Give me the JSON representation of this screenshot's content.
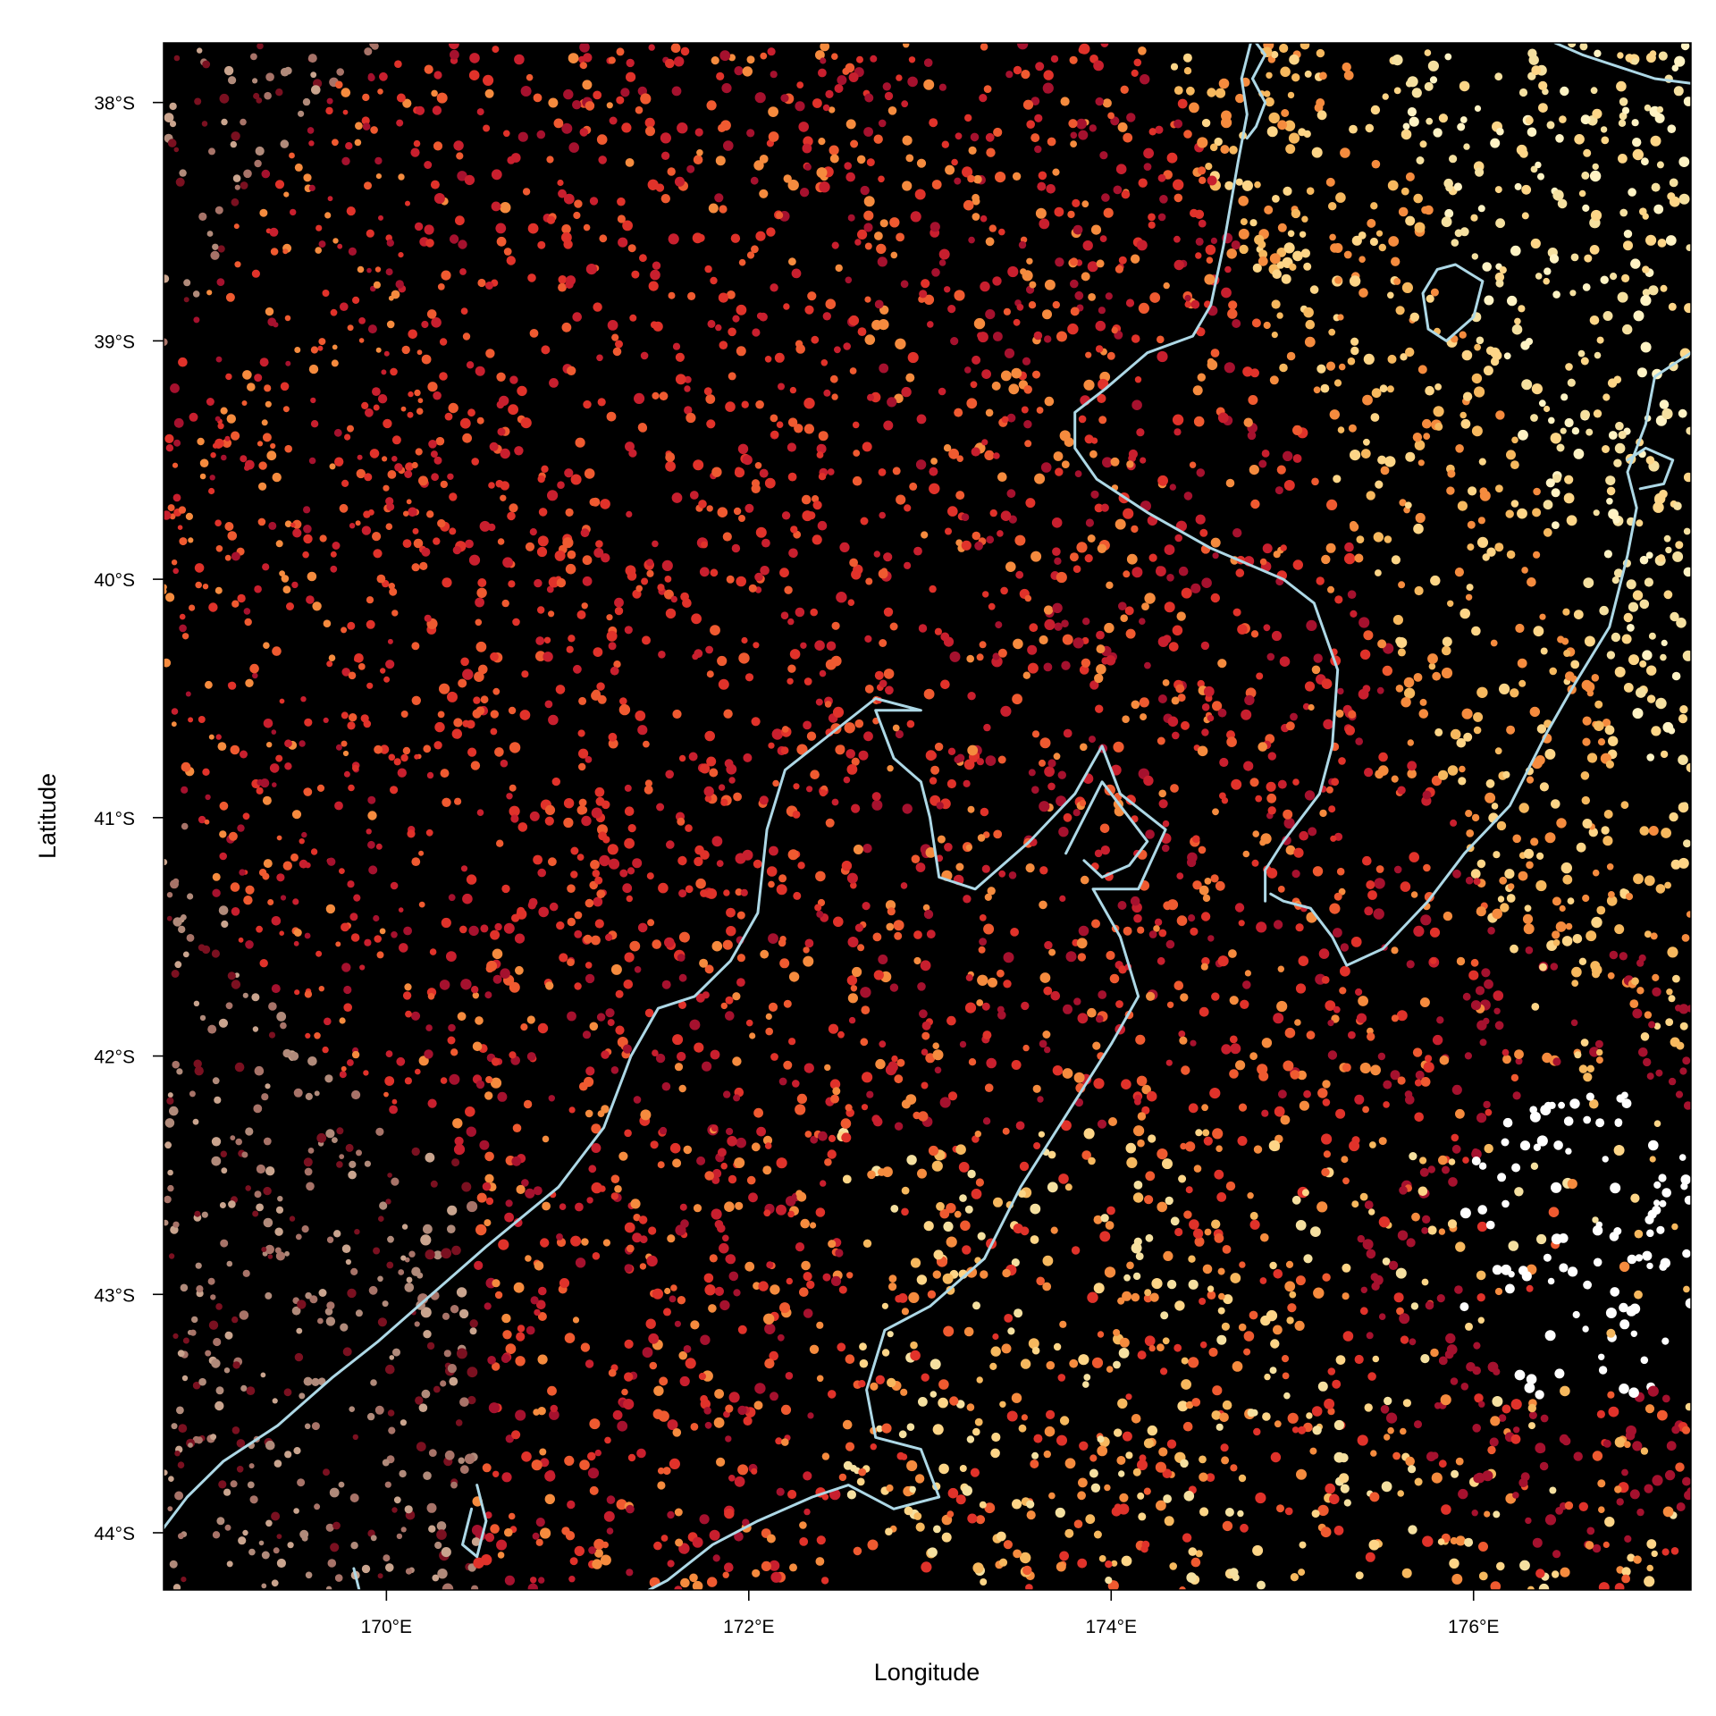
{
  "map": {
    "xlabel": "Longitude",
    "ylabel": "Latitude",
    "background_color": "#000000",
    "coastline_color": "#add8e6",
    "point_palette": [
      "#ffffff",
      "#fff3c4",
      "#f5e0a0",
      "#fdd587",
      "#f6b85e",
      "#f58b3e",
      "#ef5a30",
      "#e0322a",
      "#c81f2e",
      "#a5112e",
      "#7a1020",
      "#b08a7a",
      "#c9a48e",
      "#a77368"
    ],
    "extent": {
      "lon": [
        168.77,
        177.2
      ],
      "lat": [
        -44.24,
        -37.75
      ]
    },
    "x_ticks": [
      {
        "value": 170,
        "label": "170°E"
      },
      {
        "value": 172,
        "label": "172°E"
      },
      {
        "value": 174,
        "label": "174°E"
      },
      {
        "value": 176,
        "label": "176°E"
      }
    ],
    "y_ticks": [
      {
        "value": -38,
        "label": "38°S"
      },
      {
        "value": -39,
        "label": "39°S"
      },
      {
        "value": -40,
        "label": "40°S"
      },
      {
        "value": -41,
        "label": "41°S"
      },
      {
        "value": -42,
        "label": "42°S"
      },
      {
        "value": -43,
        "label": "43°S"
      },
      {
        "value": -44,
        "label": "44°S"
      }
    ],
    "coastlines": [
      {
        "name": "north-island-west",
        "points": [
          [
            174.77,
            -37.75
          ],
          [
            174.72,
            -37.9
          ],
          [
            174.75,
            -38.05
          ],
          [
            174.7,
            -38.25
          ],
          [
            174.62,
            -38.6
          ],
          [
            174.55,
            -38.85
          ],
          [
            174.45,
            -38.98
          ],
          [
            174.2,
            -39.05
          ],
          [
            173.97,
            -39.2
          ],
          [
            173.8,
            -39.3
          ],
          [
            173.8,
            -39.45
          ],
          [
            173.92,
            -39.58
          ],
          [
            174.2,
            -39.72
          ],
          [
            174.55,
            -39.87
          ],
          [
            174.95,
            -40.0
          ],
          [
            175.12,
            -40.1
          ],
          [
            175.25,
            -40.38
          ],
          [
            175.22,
            -40.7
          ],
          [
            175.15,
            -40.9
          ],
          [
            174.95,
            -41.1
          ],
          [
            174.85,
            -41.22
          ],
          [
            174.85,
            -41.35
          ]
        ]
      },
      {
        "name": "north-island-southeast",
        "points": [
          [
            177.2,
            -39.05
          ],
          [
            177.0,
            -39.15
          ],
          [
            176.95,
            -39.35
          ],
          [
            176.85,
            -39.55
          ],
          [
            176.9,
            -39.7
          ],
          [
            176.85,
            -39.9
          ],
          [
            176.75,
            -40.2
          ],
          [
            176.55,
            -40.45
          ],
          [
            176.4,
            -40.65
          ],
          [
            176.2,
            -40.95
          ],
          [
            175.95,
            -41.15
          ],
          [
            175.75,
            -41.35
          ],
          [
            175.5,
            -41.55
          ],
          [
            175.3,
            -41.62
          ],
          [
            175.22,
            -41.5
          ],
          [
            175.1,
            -41.38
          ],
          [
            174.95,
            -41.35
          ],
          [
            174.88,
            -41.32
          ]
        ]
      },
      {
        "name": "lake-taupo",
        "points": [
          [
            175.8,
            -38.7
          ],
          [
            175.9,
            -38.68
          ],
          [
            176.05,
            -38.75
          ],
          [
            176.0,
            -38.9
          ],
          [
            175.85,
            -39.0
          ],
          [
            175.75,
            -38.95
          ],
          [
            175.72,
            -38.8
          ],
          [
            175.8,
            -38.7
          ]
        ]
      },
      {
        "name": "hawke-bay-inlet",
        "points": [
          [
            176.85,
            -39.5
          ],
          [
            176.95,
            -39.45
          ],
          [
            177.1,
            -39.5
          ],
          [
            177.05,
            -39.6
          ],
          [
            176.92,
            -39.62
          ]
        ]
      },
      {
        "name": "auckland-harbour",
        "points": [
          [
            174.8,
            -37.75
          ],
          [
            174.85,
            -37.8
          ],
          [
            174.78,
            -37.9
          ],
          [
            174.85,
            -38.0
          ],
          [
            174.8,
            -38.1
          ],
          [
            174.75,
            -38.15
          ]
        ]
      },
      {
        "name": "northeast-coast",
        "points": [
          [
            176.45,
            -37.75
          ],
          [
            176.6,
            -37.8
          ],
          [
            176.8,
            -37.85
          ],
          [
            177.0,
            -37.9
          ],
          [
            177.2,
            -37.92
          ]
        ]
      },
      {
        "name": "south-island-west",
        "points": [
          [
            168.77,
            -43.98
          ],
          [
            168.9,
            -43.85
          ],
          [
            169.1,
            -43.7
          ],
          [
            169.4,
            -43.55
          ],
          [
            169.7,
            -43.35
          ],
          [
            169.95,
            -43.2
          ],
          [
            170.25,
            -43.0
          ],
          [
            170.55,
            -42.8
          ],
          [
            170.95,
            -42.55
          ],
          [
            171.2,
            -42.3
          ],
          [
            171.35,
            -42.0
          ],
          [
            171.5,
            -41.8
          ],
          [
            171.7,
            -41.75
          ],
          [
            171.9,
            -41.6
          ],
          [
            172.05,
            -41.4
          ],
          [
            172.1,
            -41.05
          ],
          [
            172.2,
            -40.8
          ],
          [
            172.45,
            -40.65
          ],
          [
            172.7,
            -40.5
          ],
          [
            172.95,
            -40.55
          ],
          [
            172.7,
            -40.55
          ],
          [
            172.8,
            -40.75
          ],
          [
            172.95,
            -40.85
          ],
          [
            173.0,
            -41.0
          ],
          [
            173.05,
            -41.25
          ],
          [
            173.25,
            -41.3
          ],
          [
            173.55,
            -41.1
          ],
          [
            173.8,
            -40.9
          ],
          [
            173.95,
            -40.7
          ],
          [
            174.05,
            -40.9
          ],
          [
            174.3,
            -41.05
          ],
          [
            174.15,
            -41.3
          ],
          [
            173.9,
            -41.3
          ],
          [
            174.05,
            -41.5
          ],
          [
            174.15,
            -41.75
          ],
          [
            174.0,
            -41.95
          ],
          [
            173.75,
            -42.25
          ],
          [
            173.5,
            -42.55
          ],
          [
            173.3,
            -42.85
          ],
          [
            173.0,
            -43.05
          ],
          [
            172.75,
            -43.15
          ],
          [
            172.65,
            -43.4
          ],
          [
            172.7,
            -43.6
          ],
          [
            172.95,
            -43.65
          ],
          [
            173.05,
            -43.85
          ],
          [
            172.8,
            -43.9
          ],
          [
            172.55,
            -43.8
          ],
          [
            172.35,
            -43.85
          ],
          [
            172.05,
            -43.95
          ],
          [
            171.8,
            -44.05
          ],
          [
            171.55,
            -44.2
          ],
          [
            171.45,
            -44.24
          ]
        ]
      },
      {
        "name": "marlborough-sounds",
        "points": [
          [
            173.75,
            -41.15
          ],
          [
            173.85,
            -41.0
          ],
          [
            173.95,
            -40.85
          ],
          [
            174.1,
            -41.0
          ],
          [
            174.2,
            -41.1
          ],
          [
            174.1,
            -41.2
          ],
          [
            173.95,
            -41.25
          ],
          [
            173.85,
            -41.18
          ]
        ]
      },
      {
        "name": "lake-south",
        "points": [
          [
            170.5,
            -43.8
          ],
          [
            170.55,
            -43.95
          ],
          [
            170.5,
            -44.1
          ],
          [
            170.42,
            -44.05
          ],
          [
            170.47,
            -43.9
          ]
        ]
      },
      {
        "name": "lake-south-2",
        "points": [
          [
            169.82,
            -44.15
          ],
          [
            169.85,
            -44.24
          ]
        ]
      }
    ]
  }
}
